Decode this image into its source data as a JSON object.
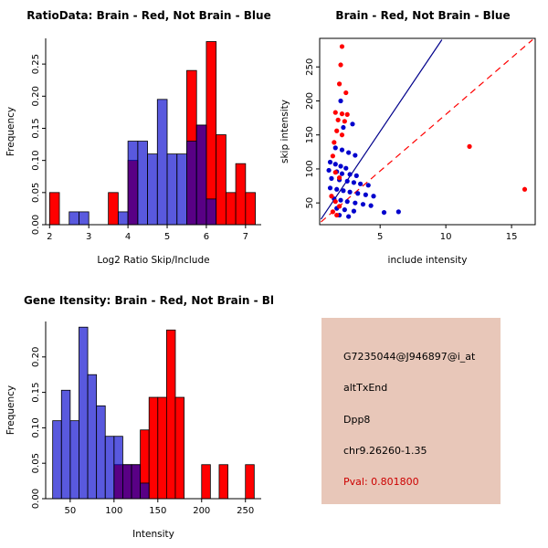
{
  "figure": {
    "background": "#ffffff"
  },
  "colors": {
    "brain_red": "#ff0000",
    "not_brain_blue": "#0000cd",
    "overlap_purple_note": "blue-drawn-over-red",
    "axis_black": "#000000",
    "info_box_bg": "#e8c7b9",
    "pval_red": "#cc0000"
  },
  "chart_data": [
    {
      "id": "ratio_histogram",
      "type": "bar",
      "title": "RatioData: Brain - Red, Not Brain - Blue",
      "xlabel": "Log2 Ratio Skip/Include",
      "ylabel": "Frequency",
      "xlim": [
        1.9,
        7.4
      ],
      "ylim": [
        0,
        0.29
      ],
      "box": false,
      "grid": false,
      "bin_width": 0.25,
      "xticks": [
        [
          2,
          "2"
        ],
        [
          3,
          "3"
        ],
        [
          4,
          "4"
        ],
        [
          5,
          "5"
        ],
        [
          6,
          "6"
        ],
        [
          7,
          "7"
        ]
      ],
      "yticks": [
        [
          0,
          "0.00"
        ],
        [
          0.05,
          "0.05"
        ],
        [
          0.1,
          "0.10"
        ],
        [
          0.15,
          "0.15"
        ],
        [
          0.2,
          "0.20"
        ],
        [
          0.25,
          "0.25"
        ]
      ],
      "series": [
        {
          "name": "Brain (red)",
          "color": "#ff0000",
          "bins": [
            [
              2.0,
              0.05
            ],
            [
              3.5,
              0.05
            ],
            [
              4.0,
              0.1
            ],
            [
              5.5,
              0.24
            ],
            [
              5.75,
              0.155
            ],
            [
              6.0,
              0.285
            ],
            [
              6.25,
              0.14
            ],
            [
              6.5,
              0.05
            ],
            [
              6.75,
              0.095
            ],
            [
              7.0,
              0.05
            ]
          ]
        },
        {
          "name": "Not Brain (blue)",
          "color": "#0000cd",
          "bins": [
            [
              2.5,
              0.02
            ],
            [
              2.75,
              0.02
            ],
            [
              3.75,
              0.02
            ],
            [
              4.0,
              0.13
            ],
            [
              4.25,
              0.13
            ],
            [
              4.5,
              0.11
            ],
            [
              4.75,
              0.195
            ],
            [
              5.0,
              0.11
            ],
            [
              5.25,
              0.11
            ],
            [
              5.5,
              0.13
            ],
            [
              5.75,
              0.155
            ],
            [
              6.0,
              0.04
            ]
          ]
        }
      ]
    },
    {
      "id": "intensity_scatter",
      "type": "scatter",
      "title": "Brain - Red, Not Brain - Blue",
      "xlabel": "include intensity",
      "ylabel": "skip intensity",
      "xlim": [
        0.4,
        16.8
      ],
      "ylim": [
        18,
        292
      ],
      "box": true,
      "grid": false,
      "xticks": [
        [
          5,
          "5"
        ],
        [
          10,
          "10"
        ],
        [
          15,
          "15"
        ]
      ],
      "yticks": [
        [
          50,
          "50"
        ],
        [
          100,
          "100"
        ],
        [
          150,
          "150"
        ],
        [
          200,
          "200"
        ],
        [
          250,
          "250"
        ]
      ],
      "lines": [
        {
          "name": "not-brain-fit-line",
          "color": "#00008b",
          "dash": false,
          "x1": 0.5,
          "y1": 26,
          "x2": 9.7,
          "y2": 290
        },
        {
          "name": "brain-fit-line",
          "color": "#ff0000",
          "dash": true,
          "x1": 0.5,
          "y1": 22,
          "x2": 16.6,
          "y2": 290
        }
      ],
      "series": [
        {
          "name": "Not Brain (blue)",
          "color": "#0000cd",
          "points": [
            [
              2.0,
              200
            ],
            [
              2.9,
              166
            ],
            [
              2.2,
              161
            ],
            [
              1.6,
              131
            ],
            [
              2.1,
              128
            ],
            [
              2.6,
              124
            ],
            [
              3.1,
              120
            ],
            [
              1.2,
              110
            ],
            [
              1.6,
              107
            ],
            [
              2.0,
              104
            ],
            [
              2.4,
              101
            ],
            [
              1.1,
              98
            ],
            [
              1.7,
              96
            ],
            [
              2.1,
              93
            ],
            [
              2.7,
              92
            ],
            [
              3.2,
              90
            ],
            [
              1.3,
              86
            ],
            [
              1.9,
              84
            ],
            [
              2.5,
              82
            ],
            [
              3.0,
              80
            ],
            [
              3.5,
              78
            ],
            [
              4.1,
              76
            ],
            [
              1.2,
              72
            ],
            [
              1.7,
              70
            ],
            [
              2.2,
              68
            ],
            [
              2.7,
              66
            ],
            [
              3.3,
              64
            ],
            [
              3.9,
              62
            ],
            [
              4.5,
              60
            ],
            [
              1.5,
              56
            ],
            [
              2.0,
              54
            ],
            [
              2.5,
              52
            ],
            [
              3.1,
              50
            ],
            [
              3.7,
              48
            ],
            [
              4.3,
              46
            ],
            [
              1.7,
              42
            ],
            [
              2.3,
              40
            ],
            [
              3.0,
              38
            ],
            [
              5.3,
              36
            ],
            [
              6.4,
              37
            ],
            [
              1.9,
              32
            ],
            [
              2.6,
              30
            ]
          ]
        },
        {
          "name": "Brain (red)",
          "color": "#ff0000",
          "points": [
            [
              2.1,
              280
            ],
            [
              2.0,
              253
            ],
            [
              1.9,
              225
            ],
            [
              2.4,
              212
            ],
            [
              1.6,
              183
            ],
            [
              2.1,
              181
            ],
            [
              2.5,
              180
            ],
            [
              1.8,
              172
            ],
            [
              2.3,
              170
            ],
            [
              1.7,
              156
            ],
            [
              2.1,
              150
            ],
            [
              1.5,
              139
            ],
            [
              11.8,
              133
            ],
            [
              1.4,
              119
            ],
            [
              16.0,
              70
            ],
            [
              1.6,
              95
            ],
            [
              1.9,
              87
            ],
            [
              1.3,
              60
            ],
            [
              1.6,
              52
            ],
            [
              1.9,
              45
            ],
            [
              1.4,
              37
            ],
            [
              1.7,
              32
            ]
          ]
        }
      ]
    },
    {
      "id": "gene_intensity_histogram",
      "type": "bar",
      "title": "Gene Itensity: Brain - Red, Not Brain - Blue",
      "xlabel": "Intensity",
      "ylabel": "Frequency",
      "xlim": [
        22,
        268
      ],
      "ylim": [
        0,
        0.25
      ],
      "box": false,
      "grid": false,
      "bin_width": 10,
      "xticks": [
        [
          50,
          "50"
        ],
        [
          100,
          "100"
        ],
        [
          150,
          "150"
        ],
        [
          200,
          "200"
        ],
        [
          250,
          "250"
        ]
      ],
      "yticks": [
        [
          0,
          "0.00"
        ],
        [
          0.05,
          "0.05"
        ],
        [
          0.1,
          "0.10"
        ],
        [
          0.15,
          "0.15"
        ],
        [
          0.2,
          "0.20"
        ]
      ],
      "series": [
        {
          "name": "Brain (red)",
          "color": "#ff0000",
          "bins": [
            [
              100,
              0.048
            ],
            [
              110,
              0.048
            ],
            [
              120,
              0.048
            ],
            [
              130,
              0.097
            ],
            [
              140,
              0.143
            ],
            [
              150,
              0.143
            ],
            [
              160,
              0.238
            ],
            [
              170,
              0.143
            ],
            [
              200,
              0.048
            ],
            [
              220,
              0.048
            ],
            [
              250,
              0.048
            ]
          ]
        },
        {
          "name": "Not Brain (blue)",
          "color": "#0000cd",
          "bins": [
            [
              30,
              0.11
            ],
            [
              40,
              0.153
            ],
            [
              50,
              0.11
            ],
            [
              60,
              0.242
            ],
            [
              70,
              0.175
            ],
            [
              80,
              0.131
            ],
            [
              90,
              0.088
            ],
            [
              100,
              0.088
            ],
            [
              110,
              0.048
            ],
            [
              120,
              0.048
            ],
            [
              130,
              0.022
            ]
          ]
        }
      ]
    }
  ],
  "info_box": {
    "bg": "#e8c7b9",
    "text_color": "#000000",
    "pval_color": "#cc0000",
    "lines": [
      "G7235044@J946897@i_at",
      "altTxEnd",
      "Dpp8",
      "chr9.26260-1.35",
      "Pval: 0.801800"
    ]
  }
}
